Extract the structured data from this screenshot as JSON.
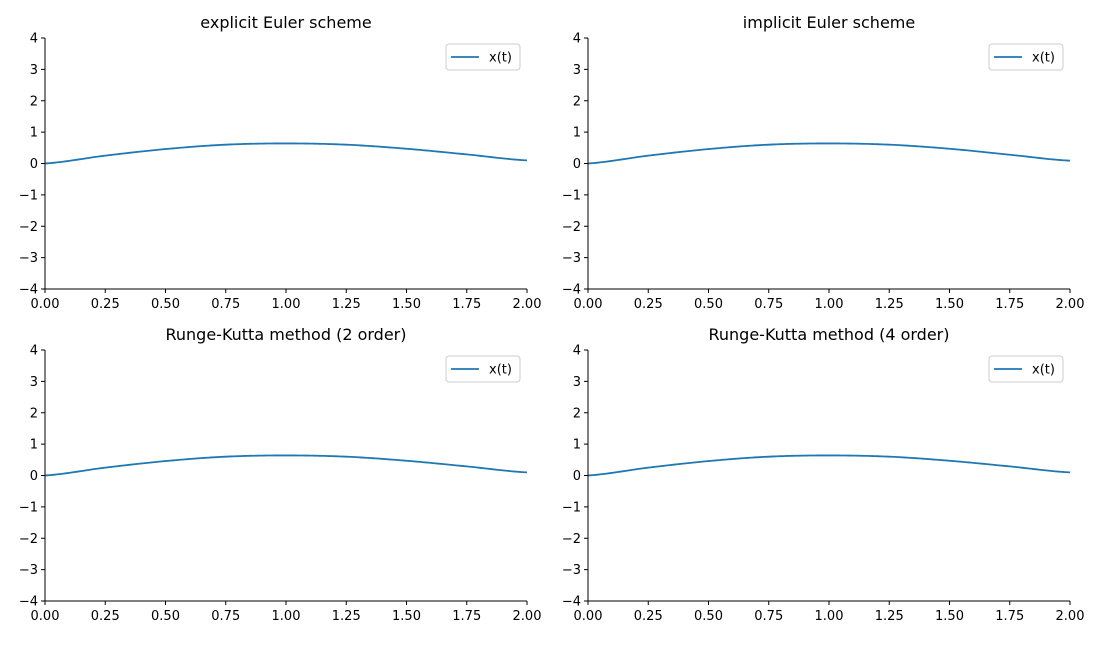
{
  "figure": {
    "line_color": "#1f77b4",
    "axis_color": "#000000",
    "legend_border_color": "#cccccc"
  },
  "chart_data": [
    {
      "type": "line",
      "title": "explicit Euler scheme",
      "xlabel": "",
      "ylabel": "",
      "xlim": [
        0,
        2
      ],
      "ylim": [
        -4,
        4
      ],
      "xticks": [
        "0.00",
        "0.25",
        "0.50",
        "0.75",
        "1.00",
        "1.25",
        "1.50",
        "1.75",
        "2.00"
      ],
      "yticks": [
        "−4",
        "−3",
        "−2",
        "−1",
        "0",
        "1",
        "2",
        "3",
        "4"
      ],
      "grid": false,
      "legend_position": "top-right",
      "series": [
        {
          "name": "x(t)",
          "x": [
            0,
            0.25,
            0.5,
            0.75,
            1.0,
            1.25,
            1.5,
            1.75,
            2.0
          ],
          "values": [
            0,
            0.25,
            0.46,
            0.6,
            0.64,
            0.6,
            0.47,
            0.29,
            0.1
          ]
        }
      ]
    },
    {
      "type": "line",
      "title": "implicit Euler scheme",
      "xlabel": "",
      "ylabel": "",
      "xlim": [
        0,
        2
      ],
      "ylim": [
        -4,
        4
      ],
      "xticks": [
        "0.00",
        "0.25",
        "0.50",
        "0.75",
        "1.00",
        "1.25",
        "1.50",
        "1.75",
        "2.00"
      ],
      "yticks": [
        "−4",
        "−3",
        "−2",
        "−1",
        "0",
        "1",
        "2",
        "3",
        "4"
      ],
      "grid": false,
      "legend_position": "top-right",
      "series": [
        {
          "name": "x(t)",
          "x": [
            0,
            0.25,
            0.5,
            0.75,
            1.0,
            1.25,
            1.5,
            1.75,
            2.0
          ],
          "values": [
            0,
            0.25,
            0.46,
            0.6,
            0.64,
            0.6,
            0.47,
            0.28,
            0.09
          ]
        }
      ]
    },
    {
      "type": "line",
      "title": "Runge-Kutta method (2 order)",
      "xlabel": "",
      "ylabel": "",
      "xlim": [
        0,
        2
      ],
      "ylim": [
        -4,
        4
      ],
      "xticks": [
        "0.00",
        "0.25",
        "0.50",
        "0.75",
        "1.00",
        "1.25",
        "1.50",
        "1.75",
        "2.00"
      ],
      "yticks": [
        "−4",
        "−3",
        "−2",
        "−1",
        "0",
        "1",
        "2",
        "3",
        "4"
      ],
      "grid": false,
      "legend_position": "top-right",
      "series": [
        {
          "name": "x(t)",
          "x": [
            0,
            0.25,
            0.5,
            0.75,
            1.0,
            1.25,
            1.5,
            1.75,
            2.0
          ],
          "values": [
            0,
            0.25,
            0.46,
            0.6,
            0.64,
            0.6,
            0.47,
            0.29,
            0.1
          ]
        }
      ]
    },
    {
      "type": "line",
      "title": "Runge-Kutta method (4 order)",
      "xlabel": "",
      "ylabel": "",
      "xlim": [
        0,
        2
      ],
      "ylim": [
        -4,
        4
      ],
      "xticks": [
        "0.00",
        "0.25",
        "0.50",
        "0.75",
        "1.00",
        "1.25",
        "1.50",
        "1.75",
        "2.00"
      ],
      "yticks": [
        "−4",
        "−3",
        "−2",
        "−1",
        "0",
        "1",
        "2",
        "3",
        "4"
      ],
      "grid": false,
      "legend_position": "top-right",
      "series": [
        {
          "name": "x(t)",
          "x": [
            0,
            0.25,
            0.5,
            0.75,
            1.0,
            1.25,
            1.5,
            1.75,
            2.0
          ],
          "values": [
            0,
            0.25,
            0.46,
            0.6,
            0.64,
            0.6,
            0.47,
            0.29,
            0.1
          ]
        }
      ]
    }
  ]
}
